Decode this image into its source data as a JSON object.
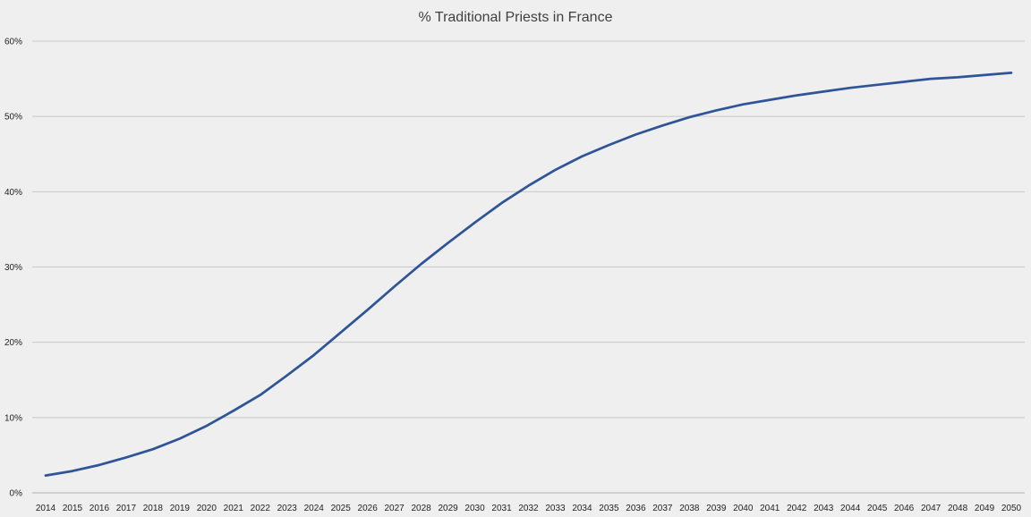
{
  "chart_data": {
    "type": "line",
    "title": "% Traditional Priests in France",
    "xlabel": "",
    "ylabel": "",
    "ylim": [
      0,
      60
    ],
    "yticks": [
      "0%",
      "10%",
      "20%",
      "30%",
      "40%",
      "50%",
      "60%"
    ],
    "grid": true,
    "legend": "none",
    "x": [
      "2014",
      "2015",
      "2016",
      "2017",
      "2018",
      "2019",
      "2020",
      "2021",
      "2022",
      "2023",
      "2024",
      "2025",
      "2026",
      "2027",
      "2028",
      "2029",
      "2030",
      "2031",
      "2032",
      "2033",
      "2034",
      "2035",
      "2036",
      "2037",
      "2038",
      "2039",
      "2040",
      "2041",
      "2042",
      "2043",
      "2044",
      "2045",
      "2046",
      "2047",
      "2048",
      "2049",
      "2050"
    ],
    "series": [
      {
        "name": "",
        "color": "#2f5597",
        "values": [
          2.3,
          2.9,
          3.7,
          4.7,
          5.8,
          7.2,
          8.9,
          10.9,
          13.0,
          15.6,
          18.3,
          21.3,
          24.3,
          27.4,
          30.4,
          33.2,
          35.9,
          38.5,
          40.8,
          42.9,
          44.7,
          46.2,
          47.6,
          48.8,
          49.9,
          50.8,
          51.6,
          52.2,
          52.8,
          53.3,
          53.8,
          54.2,
          54.6,
          55.0,
          55.2,
          55.5,
          55.8
        ]
      }
    ]
  }
}
